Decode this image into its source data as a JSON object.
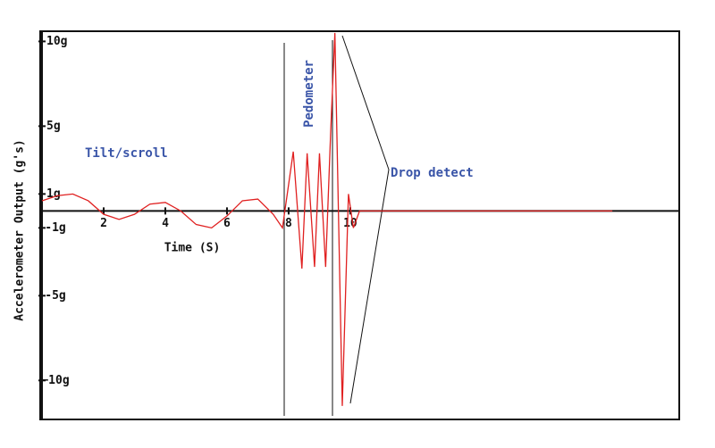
{
  "chart_data": {
    "type": "line",
    "x_label": "Time (S)",
    "y_label": "Accelerometer Output (g's)",
    "annotations": [
      "Tilt/scroll",
      "Pedometer",
      "Drop detect"
    ],
    "xlim": [
      0,
      20.67
    ],
    "xticks": [
      2,
      4,
      6,
      8,
      10
    ],
    "ylim": [
      -12.3,
      10.6
    ],
    "yticks": [
      {
        "value": 10,
        "label": "10g"
      },
      {
        "value": 5,
        "label": "5g"
      },
      {
        "value": 1,
        "label": "1g"
      },
      {
        "value": -1,
        "label": "-1g"
      },
      {
        "value": -5,
        "label": "-5g"
      },
      {
        "value": -10,
        "label": "−10g"
      }
    ],
    "series": [
      {
        "color": "#e02020",
        "x": [
          0,
          0.5,
          1,
          1.5,
          2,
          2.5,
          3,
          3.5,
          4,
          4.5,
          5,
          5.5,
          6,
          6.5,
          7,
          7.5,
          7.8,
          8.15,
          8.43,
          8.6,
          8.84,
          9.0,
          9.2,
          9.36,
          9.5,
          9.74,
          9.94,
          10.1,
          10.3,
          11,
          18.5
        ],
        "values": [
          0.6,
          0.9,
          1.0,
          0.6,
          -0.2,
          -0.5,
          -0.2,
          0.4,
          0.5,
          0,
          -0.8,
          -1.0,
          -0.3,
          0.6,
          0.7,
          -0.2,
          -1.0,
          3.5,
          -3.4,
          3.4,
          -3.3,
          3.4,
          -3.3,
          4.5,
          10.5,
          -11.5,
          1.0,
          -1.0,
          0,
          0,
          0
        ]
      }
    ]
  }
}
